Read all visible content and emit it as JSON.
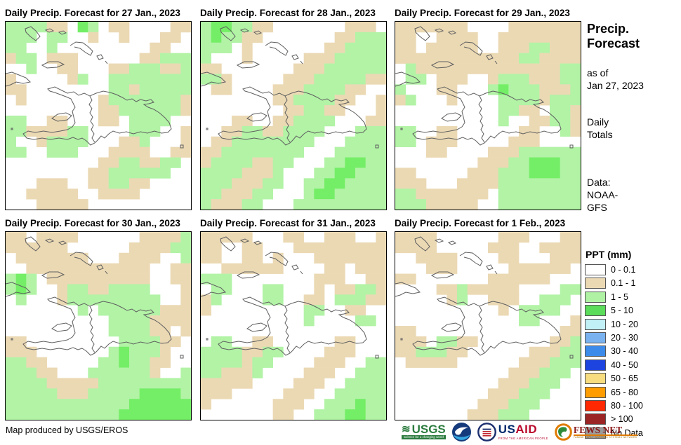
{
  "panels": [
    {
      "title": "Daily Precip. Forecast for 27 Jan., 2023",
      "grid": [
        "ggggttwGgwttwwwwtt",
        "gggwggwwtwwtwwwttw",
        "ggwwgwwwwwwwwwttww",
        "tggwtttwwwwwwttggg",
        "wwgwwttwwwttgggttg",
        "twwwwwtgwwgggggggg",
        "ttwwwwwwwwggtggggg",
        "wtwwwwwwwtgggggggt",
        "wwwwwwwwwttggggggt",
        "ggwwttwwwttwggggww",
        "ggttttggwwwwgggwwt",
        "gwwtggggwwwttgwwwt",
        "ggwwgggwwwttttwwtt",
        "wwwwwwwwwttggttggw",
        "wwwwwwwwttggggggww",
        "wwwtttwwttggttwwww",
        "wwtttttwwttttwwwww",
        "wwwtttttwwwwwwwwww"
      ]
    },
    {
      "title": "Daily Precip. Forecast for 28 Jan., 2023",
      "grid": [
        "gGGggttwwwwwwwtttw",
        "gGggttwwwwwwwttggg",
        "gggwtwwwwwwwttgggg",
        "gwwwtwwwwwtttggggg",
        "ttwwwwwwwtttgggggg",
        "ggtwwwwwtttgggggtt",
        "wttwwwwtttggggttww",
        "wwwwwwwttggggttwwt",
        "wwwwwwwwttggttwwwt",
        "wwwttwwttggggwwwtt",
        "wwttggttggggwwwggg",
        "wttggggggggwwwgggg",
        "ttggggggggwwwggggg",
        "tggggttggwwwggGGgg",
        "ggggtttgwwwggGGggg",
        "gggtttggwwggGGgggg",
        "ggtttggwwwgGGggggg",
        "gtttggwwwggggggggg"
      ]
    },
    {
      "title": "Daily Precip. Forecast for 29 Jan., 2023",
      "grid": [
        "tttttttwwwwttttttt",
        "ttwwttttwwtttttttt",
        "ttwtttttwwtttggttt",
        "ttttttttttttggtttt",
        "wgttttttttttttttgg",
        "wggwtttwwtgggtttgg",
        "gwwwttwwwgGgggtttg",
        "tgwwwtwwwwggggtggg",
        "wwwwwwwwwwggttwggt",
        "wwwwwwwwwwgwwttggt",
        "ggwwttwwwwwwttwwgt",
        "ggwtttwwwwwtttwwww",
        "wwwttwwwwtttgggggg",
        "wwwwwwwwtttggGGGgg",
        "ttwwwwwtttgggGGGgg",
        "tttwwwttttgggggggg",
        "ggtttttttwgggggggg",
        "gggtttttwwgggggggg"
      ]
    },
    {
      "title": "Daily Precip. Forecast for 30 Jan., 2023",
      "grid": [
        "ttwttttwwwwwwttttg",
        "ttttttwwwwwwttttgg",
        "wtttttttwwwttttwwg",
        "wwttttttttttttwwtt",
        "gGgwttttttttttwwtt",
        "gGgwwtggttggggwwwt",
        "wgwwwtgggggggggwwt",
        "wwwwwwwgwggggggttt",
        "wwwwwwwwwwggggtttt",
        "wwwwwwwwwwggggttwt",
        "ttwwwwwwwwwggggttw",
        "tttwwwwwwwgGgggtww",
        "ggttwwwwwggGggttww",
        "gggttwwwggggggtwwg",
        "ggggtttttggggggggg",
        "gggggtttgggggGGGGg",
        "ggggggggggggGGGGGG",
        "gggggggggggGGGGGGG"
      ]
    },
    {
      "title": "Daily Precip. Forecast for 31 Jan., 2023",
      "grid": [
        "tttttwwwttwwtttwwt",
        "ttwwttwwwttttttttt",
        "ttwwttwtwwwttttttt",
        "wwttttttwwwwttwttt",
        "gggwwwwwwwwtttwwtt",
        "wggwwwggwwwtwttggt",
        "tgwwwwggwwttwgggtt",
        "twwwwwwwwwggwwttww",
        "wwwwwwwwwwgwwwwggw",
        "wwwwwwwwwwwwwwwwww",
        "wggwwttwwwwwwttwww",
        "ggggttggwwwwtttwww",
        "ggggtggwwwwtttwwgg",
        "ggtttgwwwwtttwwggg",
        "tttttwwwwtttwwgggg",
        "tttwwwwwtttwwggggg",
        "twwwwwwtttwwgggGgg",
        "wwwwwwwttwwgggGGgg"
      ]
    },
    {
      "title": "Daily Precip. Forecast for 1 Feb., 2023",
      "grid": [
        "ttttwwwwwwtttwwwtt",
        "ttttwwwwwtttwwtttt",
        "wwttttwwwwttwwwttt",
        "wwwtttwwwwwttttttw",
        "ttwwwwwwwttttttwww",
        "wwwwttgtttttwwwwgg",
        "wwwwwtgwwtttwwgggw",
        "wwwwwwwwwwtwggggww",
        "wwwwwwwwwwwwggwwwt",
        "ttwwwwwwwwwwwwwwtt",
        "tttwggttwwwwwwwttg",
        "ttgggttwwwwwwtttgg",
        "wtttttwwwwwwtttggg",
        "wwwwwwwwwwwtttgggw",
        "wwwwwwwwwwtttgggww",
        "wwwwwwwwwtttgggwww",
        "wwwwwwwwtttgggwwww",
        "wwwwwwwtttgggwwwww"
      ]
    }
  ],
  "map_colors": {
    "w": "#FFFFFF",
    "t": "#EBD9B4",
    "g": "#B2F3A6",
    "G": "#74EE66"
  },
  "sidebar": {
    "title_line1": "Precip.",
    "title_line2": "Forecast",
    "asof_line1": "as of",
    "asof_line2": "Jan 27, 2023",
    "totals_line1": "Daily",
    "totals_line2": "Totals",
    "data_line1": "Data:",
    "data_line2": "NOAA-",
    "data_line3": "GFS"
  },
  "legend": {
    "title": "PPT (mm)",
    "entries": [
      {
        "label": "0 - 0.1",
        "color": "#FFFFFF"
      },
      {
        "label": "0.1 - 1",
        "color": "#EBD9B4"
      },
      {
        "label": "1 - 5",
        "color": "#AFF2A4"
      },
      {
        "label": "5 - 10",
        "color": "#5BDC5B"
      },
      {
        "label": "10 - 20",
        "color": "#C2F0F7"
      },
      {
        "label": "20 - 30",
        "color": "#7AB2EF"
      },
      {
        "label": "30 - 40",
        "color": "#3C8BEA"
      },
      {
        "label": "40 - 50",
        "color": "#1D44DF"
      },
      {
        "label": "50 - 65",
        "color": "#F7DD7F"
      },
      {
        "label": "65 - 80",
        "color": "#FF9D00"
      },
      {
        "label": "80 - 100",
        "color": "#FF2800"
      },
      {
        "label": "> 100",
        "color": "#9B2425"
      },
      {
        "label": "No Data",
        "color": "#9C9C9C"
      }
    ]
  },
  "footer": {
    "credit": "Map produced by USGS/EROS"
  },
  "logos": {
    "usgs": {
      "name": "USGS",
      "tagline": "science for a changing world"
    },
    "usaid": {
      "name_us": "US",
      "name_aid": "AID",
      "tagline": "FROM THE AMERICAN PEOPLE"
    },
    "fewsnet": {
      "name": "FEWS NET",
      "tagline": "FAMINE EARLY WARNING SYSTEMS NETWORK"
    }
  }
}
